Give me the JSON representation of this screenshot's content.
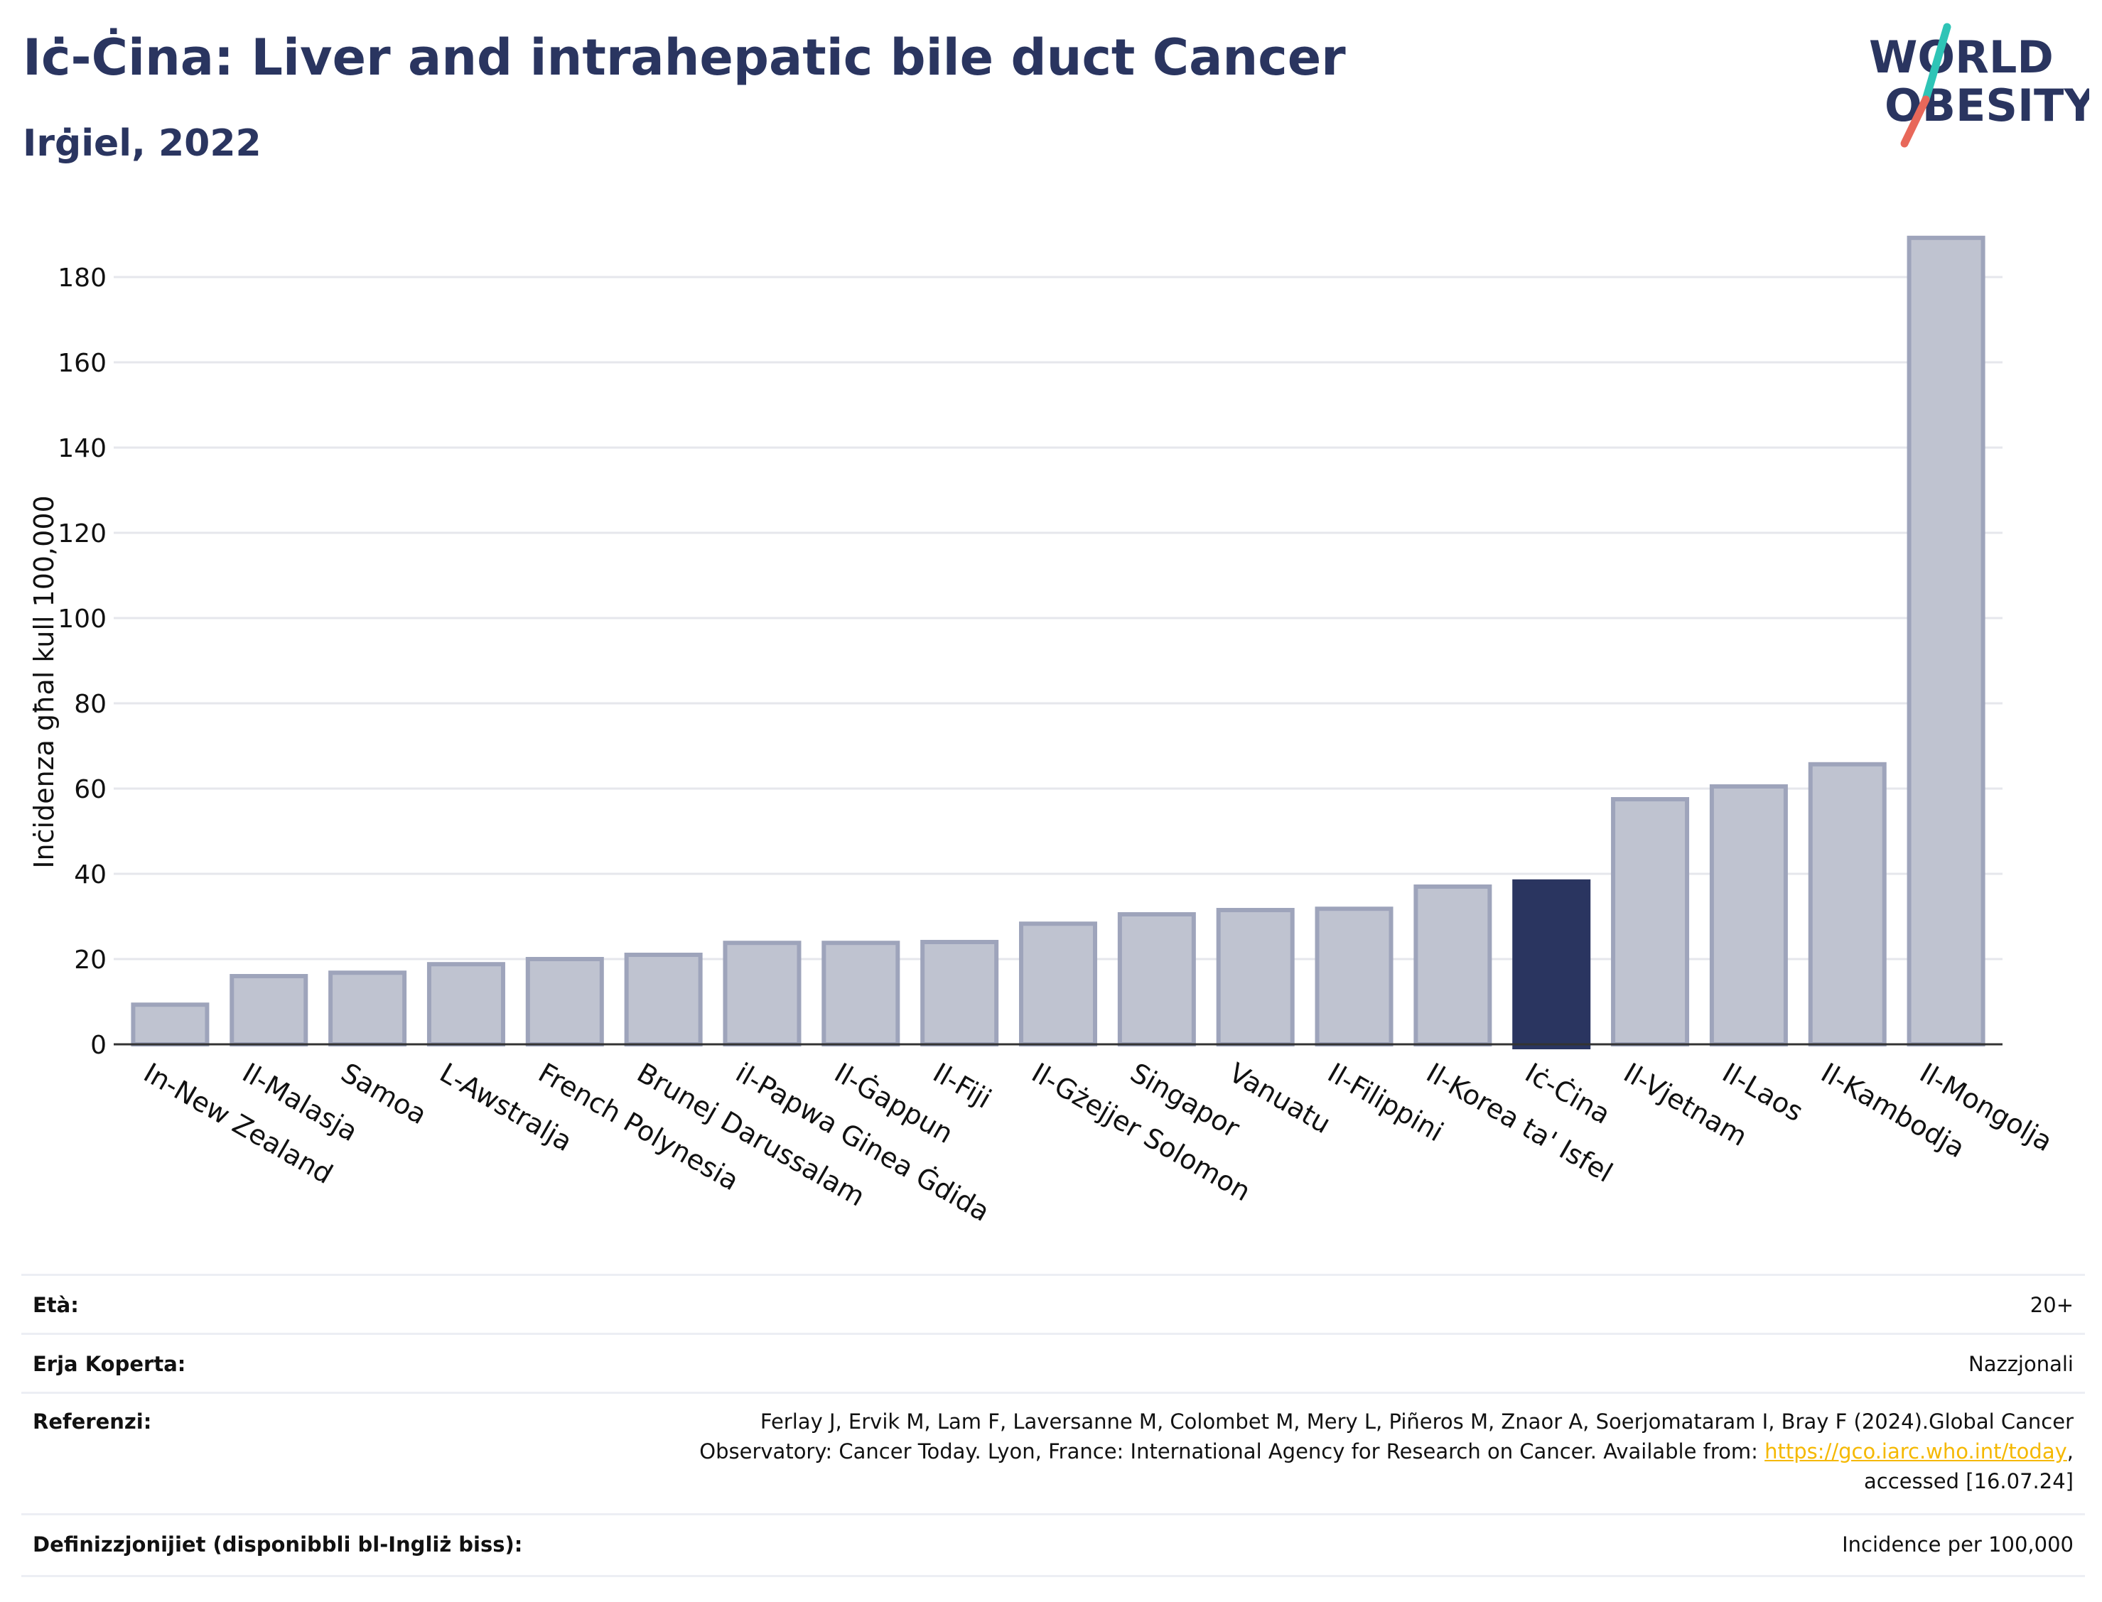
{
  "header": {
    "title": "Iċ-Ċina: Liver and intrahepatic bile duct Cancer",
    "subtitle": "Irġiel, 2022"
  },
  "logo": {
    "line1": "WORLD",
    "line2": "OBESITY"
  },
  "colors": {
    "highlight": "#2a3560",
    "bar": "#bfc3d0",
    "bar_edge": "#9ea4bb",
    "grid": "#e6e7ec",
    "logo_teal": "#2ec4b6",
    "logo_coral": "#e8685a",
    "link": "#f5b800"
  },
  "chart_data": {
    "type": "bar",
    "title": "Iċ-Ċina: Liver and intrahepatic bile duct Cancer",
    "subtitle": "Irġiel, 2022",
    "xlabel": "",
    "ylabel": "Inċidenza għal kull 100,000",
    "ylim": [
      0,
      190
    ],
    "yticks": [
      0,
      20,
      40,
      60,
      80,
      100,
      120,
      140,
      160,
      180
    ],
    "grid": true,
    "highlight": "Iċ-Ċina",
    "categories": [
      "In-New Zealand",
      "Il-Malasja",
      "Samoa",
      "L-Awstralja",
      "French Polynesia",
      "Brunej Darussalam",
      "il-Papwa Ginea Ġdida",
      "Il-Ġappun",
      "Il-Fiji",
      "Il-Gżejjer Solomon",
      "Singapor",
      "Vanuatu",
      "Il-Filippini",
      "Il-Korea ta' Isfel",
      "Iċ-Ċina",
      "Il-Vjetnam",
      "Il-Laos",
      "Il-Kambodja",
      "Il-Mongolja"
    ],
    "values": [
      9.3,
      16.0,
      16.8,
      18.8,
      20.0,
      21.0,
      23.8,
      23.8,
      24.0,
      28.3,
      30.5,
      31.5,
      31.8,
      37.0,
      38.2,
      57.5,
      60.5,
      65.7,
      189.2
    ]
  },
  "info": {
    "age_label": "Età:",
    "age_value": "20+",
    "area_label": "Erja Koperta:",
    "area_value": "Nazzjonali",
    "ref_label": "Referenzi:",
    "ref_line1": "Ferlay J, Ervik M, Lam F, Laversanne M, Colombet M, Mery L, Piñeros M, Znaor A, Soerjomataram I, Bray F (2024).Global Cancer",
    "ref_line2_pre": "Observatory: Cancer Today. Lyon, France: International Agency for Research on Cancer. Available from:",
    "ref_link": "https://gco.iarc.who.int/today",
    "ref_line2_post": ",",
    "ref_line3": "accessed [16.07.24]",
    "def_label": "Definizzjonijiet (disponibbli bl-Ingliż biss):",
    "def_value": "Incidence per 100,000"
  }
}
